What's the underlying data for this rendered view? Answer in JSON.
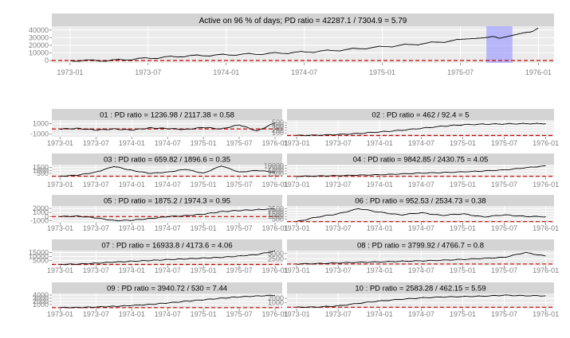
{
  "chart_data": [
    {
      "type": "line",
      "title": "Active on 96 % of days; PD ratio =  42287.1 / 7304.9 = 5.79",
      "x_ticks": [
        "1973-01",
        "1973-07",
        "1974-01",
        "1974-07",
        "1975-01",
        "1975-07",
        "1976-01"
      ],
      "y_ticks": [
        0,
        10000,
        20000,
        30000,
        40000
      ],
      "ylim": [
        -3000,
        45000
      ],
      "series": [
        {
          "x": [
            "1973-01",
            "1973-04",
            "1973-07",
            "1973-10",
            "1974-01",
            "1974-04",
            "1974-07",
            "1974-10",
            "1975-01",
            "1975-04",
            "1975-07",
            "1975-09",
            "1975-10",
            "1975-12",
            "1976-01"
          ],
          "values": [
            0,
            0,
            3000,
            6000,
            7500,
            9000,
            11000,
            14000,
            18000,
            22000,
            27000,
            31000,
            30000,
            36000,
            42000
          ]
        }
      ],
      "reference_line": 0,
      "highlight_x_range": [
        "1975-09",
        "1975-11"
      ],
      "colors": {
        "line": "#000000",
        "reference": "#cc0000",
        "highlight": "#9999ff"
      }
    },
    {
      "type": "line",
      "title": "01 : PD ratio =  1236.98 / 2117.38 = 0.58",
      "x_ticks": [
        "1973-01",
        "1973-07",
        "1974-01",
        "1974-07",
        "1975-01",
        "1975-07",
        "1976-01"
      ],
      "y_ticks": [
        -1000,
        1000
      ],
      "ylim": [
        -1500,
        1700
      ],
      "series": [
        {
          "x": [
            "1973-01",
            "1973-04",
            "1973-07",
            "1973-10",
            "1974-01",
            "1974-04",
            "1974-07",
            "1974-10",
            "1975-01",
            "1975-04",
            "1975-07",
            "1975-10",
            "1976-01"
          ],
          "values": [
            0,
            100,
            -200,
            0,
            -200,
            200,
            100,
            -100,
            300,
            0,
            800,
            -400,
            1200
          ]
        }
      ],
      "reference_line": 0
    },
    {
      "type": "line",
      "title": "02 : PD ratio =  462 / 92.4 = 5",
      "x_ticks": [
        "1973-01",
        "1973-07",
        "1974-01",
        "1974-07",
        "1975-01",
        "1975-07",
        "1976-01"
      ],
      "y_ticks": [
        100,
        200,
        300,
        400,
        500
      ],
      "ylim": [
        -50,
        600
      ],
      "series": [
        {
          "x": [
            "1973-01",
            "1973-04",
            "1973-07",
            "1973-10",
            "1974-01",
            "1974-04",
            "1974-07",
            "1974-10",
            "1975-01",
            "1975-04",
            "1975-07",
            "1975-10",
            "1976-01"
          ],
          "values": [
            0,
            10,
            40,
            80,
            140,
            200,
            280,
            360,
            420,
            440,
            450,
            460,
            462
          ]
        }
      ],
      "reference_line": 0
    },
    {
      "type": "line",
      "title": "03 : PD ratio =  659.82 / 1896.6 = 0.35",
      "x_ticks": [
        "1973-01",
        "1973-07",
        "1974-01",
        "1974-07",
        "1975-01",
        "1975-07",
        "1976-01"
      ],
      "y_ticks": [
        500,
        1000,
        1500
      ],
      "ylim": [
        -200,
        2000
      ],
      "series": [
        {
          "x": [
            "1973-01",
            "1973-04",
            "1973-07",
            "1973-10",
            "1974-01",
            "1974-04",
            "1974-07",
            "1974-10",
            "1975-01",
            "1975-04",
            "1975-07",
            "1975-10",
            "1976-01"
          ],
          "values": [
            0,
            200,
            700,
            1700,
            1000,
            500,
            700,
            1200,
            500,
            1800,
            700,
            1000,
            700
          ]
        }
      ],
      "reference_line": 0
    },
    {
      "type": "line",
      "title": "04 : PD ratio =  9842.85 / 2430.75 = 4.05",
      "x_ticks": [
        "1973-01",
        "1973-07",
        "1974-01",
        "1974-07",
        "1975-01",
        "1975-07",
        "1976-01"
      ],
      "y_ticks": [
        2500,
        5000,
        7500,
        10000
      ],
      "ylim": [
        -1000,
        11000
      ],
      "series": [
        {
          "x": [
            "1973-01",
            "1973-04",
            "1973-07",
            "1973-10",
            "1974-01",
            "1974-04",
            "1974-07",
            "1974-10",
            "1975-01",
            "1975-04",
            "1975-07",
            "1975-10",
            "1976-01"
          ],
          "values": [
            0,
            300,
            600,
            1100,
            1500,
            2200,
            3000,
            3500,
            4200,
            5000,
            6000,
            8000,
            9800
          ]
        }
      ],
      "reference_line": 0
    },
    {
      "type": "line",
      "title": "05 : PD ratio =  1875.2 / 1974.3 = 0.95",
      "x_ticks": [
        "1973-01",
        "1973-07",
        "1974-01",
        "1974-07",
        "1975-01",
        "1975-07",
        "1976-01"
      ],
      "y_ticks": [
        -1000,
        0,
        1000,
        2000
      ],
      "ylim": [
        -1500,
        2600
      ],
      "series": [
        {
          "x": [
            "1973-01",
            "1973-04",
            "1973-07",
            "1973-10",
            "1974-01",
            "1974-04",
            "1974-07",
            "1974-10",
            "1975-01",
            "1975-04",
            "1975-07",
            "1975-10",
            "1976-01"
          ],
          "values": [
            0,
            100,
            -300,
            -1000,
            -900,
            -500,
            0,
            200,
            600,
            1200,
            1500,
            1700,
            1900
          ]
        }
      ],
      "reference_line": 0
    },
    {
      "type": "line",
      "title": "06 : PD ratio =  952.53 / 2534.73 = 0.38",
      "x_ticks": [
        "1973-01",
        "1973-07",
        "1974-01",
        "1974-07",
        "1975-01",
        "1975-07",
        "1976-01"
      ],
      "y_ticks": [
        500,
        1000,
        1500,
        2000,
        2500
      ],
      "ylim": [
        -200,
        3000
      ],
      "series": [
        {
          "x": [
            "1973-01",
            "1973-04",
            "1973-07",
            "1973-10",
            "1974-01",
            "1974-04",
            "1974-07",
            "1974-10",
            "1975-01",
            "1975-04",
            "1975-07",
            "1975-10",
            "1976-01"
          ],
          "values": [
            0,
            900,
            1500,
            2500,
            1800,
            1300,
            1700,
            1200,
            1500,
            900,
            1300,
            1000,
            950
          ]
        }
      ],
      "reference_line": 0
    },
    {
      "type": "line",
      "title": "07 : PD ratio =  16933.8 / 4173.6 = 4.06",
      "x_ticks": [
        "1973-01",
        "1973-07",
        "1974-01",
        "1974-07",
        "1975-01",
        "1975-07",
        "1976-01"
      ],
      "y_ticks": [
        5000,
        10000,
        15000
      ],
      "ylim": [
        -1500,
        17500
      ],
      "series": [
        {
          "x": [
            "1973-01",
            "1973-04",
            "1973-07",
            "1973-10",
            "1974-01",
            "1974-04",
            "1974-07",
            "1974-10",
            "1975-01",
            "1975-04",
            "1975-07",
            "1975-10",
            "1976-01"
          ],
          "values": [
            0,
            500,
            1500,
            3000,
            4000,
            5000,
            6000,
            7000,
            8000,
            9000,
            10500,
            12500,
            16900
          ]
        }
      ],
      "reference_line": 0
    },
    {
      "type": "line",
      "title": "08 : PD ratio =  3799.92 / 4766.7 = 0.8",
      "x_ticks": [
        "1973-01",
        "1973-07",
        "1974-01",
        "1974-07",
        "1975-01",
        "1975-07",
        "1976-01"
      ],
      "y_ticks": [
        2500,
        5000
      ],
      "ylim": [
        -800,
        6500
      ],
      "series": [
        {
          "x": [
            "1973-01",
            "1973-04",
            "1973-07",
            "1973-10",
            "1974-01",
            "1974-04",
            "1974-07",
            "1974-10",
            "1975-01",
            "1975-04",
            "1975-07",
            "1975-10",
            "1976-01"
          ],
          "values": [
            0,
            200,
            500,
            800,
            1000,
            1300,
            1500,
            1800,
            2200,
            2700,
            3200,
            5500,
            3800
          ]
        }
      ],
      "reference_line": 0
    },
    {
      "type": "line",
      "title": "09 : PD ratio =  3940.72 / 530 = 7.44",
      "x_ticks": [
        "1973-01",
        "1973-07",
        "1974-01",
        "1974-07",
        "1975-01",
        "1975-07",
        "1976-01"
      ],
      "y_ticks": [
        1000,
        2000,
        3000,
        4000
      ],
      "ylim": [
        -300,
        4500
      ],
      "series": [
        {
          "x": [
            "1973-01",
            "1973-04",
            "1973-07",
            "1973-10",
            "1974-01",
            "1974-04",
            "1974-07",
            "1974-10",
            "1975-01",
            "1975-04",
            "1975-07",
            "1975-10",
            "1976-01"
          ],
          "values": [
            0,
            50,
            200,
            400,
            700,
            1000,
            1500,
            2000,
            2500,
            3000,
            3400,
            3700,
            3940
          ]
        }
      ],
      "reference_line": 0
    },
    {
      "type": "line",
      "title": "10 : PD ratio =  2583.28 / 462.15 = 5.59",
      "x_ticks": [
        "1973-01",
        "1973-07",
        "1974-01",
        "1974-07",
        "1975-01",
        "1975-07",
        "1976-01"
      ],
      "y_ticks": [
        1000,
        2000
      ],
      "ylim": [
        -300,
        3100
      ],
      "series": [
        {
          "x": [
            "1973-01",
            "1973-04",
            "1973-07",
            "1973-10",
            "1974-01",
            "1974-04",
            "1974-07",
            "1974-10",
            "1975-01",
            "1975-04",
            "1975-07",
            "1975-10",
            "1976-01"
          ],
          "values": [
            0,
            50,
            300,
            900,
            1400,
            1800,
            2100,
            2300,
            2400,
            2500,
            2700,
            2600,
            2580
          ]
        }
      ],
      "reference_line": 0
    }
  ]
}
